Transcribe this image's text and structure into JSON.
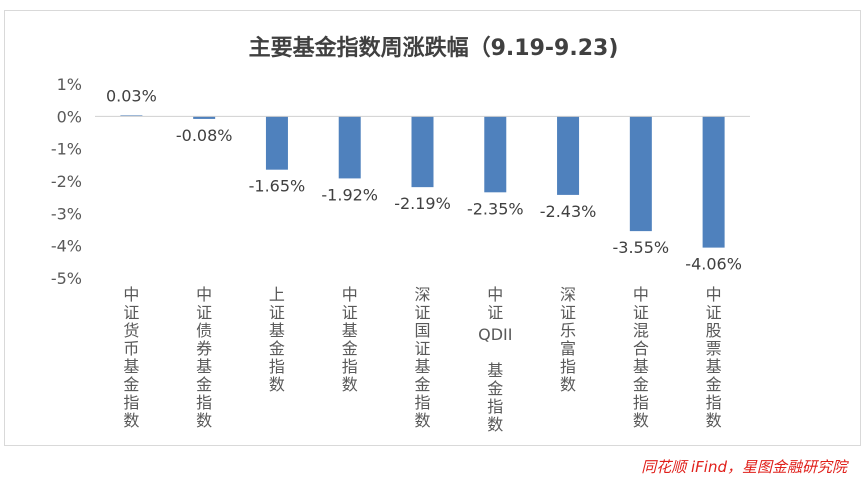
{
  "chart_data": {
    "type": "bar",
    "title": "主要基金指数周涨跌幅（9.19-9.23)",
    "categories": [
      "中证货币基金指数",
      "中证债券基金指数",
      "上证基金指数",
      "中证基金指数",
      "深证国证基金指数",
      "中证QDII基金指数",
      "深证乐富指数",
      "中证混合基金指数",
      "中证股票基金指数"
    ],
    "values": [
      0.03,
      -0.08,
      -1.65,
      -1.92,
      -2.19,
      -2.35,
      -2.43,
      -3.55,
      -4.06
    ],
    "value_labels": [
      "0.03%",
      "-0.08%",
      "-1.65%",
      "-1.92%",
      "-2.19%",
      "-2.35%",
      "-2.43%",
      "-3.55%",
      "-4.06%"
    ],
    "ylim": [
      -5,
      1
    ],
    "yticks": [
      "1%",
      "0%",
      "-1%",
      "-2%",
      "-3%",
      "-4%",
      "-5%"
    ],
    "ytick_values": [
      1,
      0,
      -1,
      -2,
      -3,
      -4,
      -5
    ],
    "grid": false,
    "bar_color": "#4f81bd",
    "xlabel": "",
    "ylabel": ""
  },
  "source": "同花顺 iFind，星图金融研究院",
  "colors": {
    "bar": "#4f81bd",
    "source": "#e0201b",
    "title": "#404040"
  }
}
